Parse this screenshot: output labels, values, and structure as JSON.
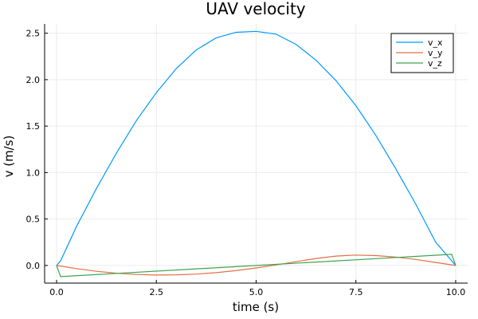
{
  "chart_data": {
    "type": "line",
    "title": "UAV velocity",
    "xlabel": "time (s)",
    "ylabel": "v (m/s)",
    "xlim": [
      -0.3,
      10.3
    ],
    "ylim": [
      -0.19,
      2.6
    ],
    "xticks": [
      0.0,
      2.5,
      5.0,
      7.5,
      10.0
    ],
    "xtick_labels": [
      "0.0",
      "2.5",
      "5.0",
      "7.5",
      "10.0"
    ],
    "yticks": [
      0.0,
      0.5,
      1.0,
      1.5,
      2.0,
      2.5
    ],
    "ytick_labels": [
      "0.0",
      "0.5",
      "1.0",
      "1.5",
      "2.0",
      "2.5"
    ],
    "grid": true,
    "legend_position": "top-right",
    "series": [
      {
        "name": "v_x",
        "color": "#009AFA",
        "x": [
          0.0,
          0.1,
          0.5,
          1.0,
          1.5,
          2.0,
          2.5,
          3.0,
          3.5,
          4.0,
          4.5,
          5.0,
          5.5,
          6.0,
          6.5,
          7.0,
          7.5,
          8.0,
          8.5,
          9.0,
          9.5,
          9.9,
          10.0
        ],
        "y": [
          0.0,
          0.05,
          0.42,
          0.83,
          1.21,
          1.56,
          1.86,
          2.12,
          2.32,
          2.45,
          2.51,
          2.52,
          2.49,
          2.38,
          2.21,
          1.99,
          1.72,
          1.4,
          1.04,
          0.66,
          0.25,
          0.05,
          0.0
        ]
      },
      {
        "name": "v_y",
        "color": "#E36F47",
        "x": [
          0.0,
          0.5,
          1.0,
          1.5,
          2.0,
          2.5,
          3.0,
          3.5,
          4.0,
          4.5,
          5.0,
          5.5,
          6.0,
          6.5,
          7.0,
          7.5,
          8.0,
          8.5,
          9.0,
          9.5,
          10.0
        ],
        "y": [
          0.0,
          -0.034,
          -0.063,
          -0.083,
          -0.097,
          -0.103,
          -0.101,
          -0.093,
          -0.077,
          -0.055,
          -0.027,
          0.006,
          0.041,
          0.075,
          0.101,
          0.112,
          0.106,
          0.09,
          0.065,
          0.032,
          0.0
        ]
      },
      {
        "name": "v_z",
        "color": "#3EA44E",
        "x": [
          0.0,
          0.1,
          5.0,
          9.9,
          10.0
        ],
        "y": [
          0.0,
          -0.12,
          0.0,
          0.12,
          0.0
        ]
      }
    ]
  }
}
